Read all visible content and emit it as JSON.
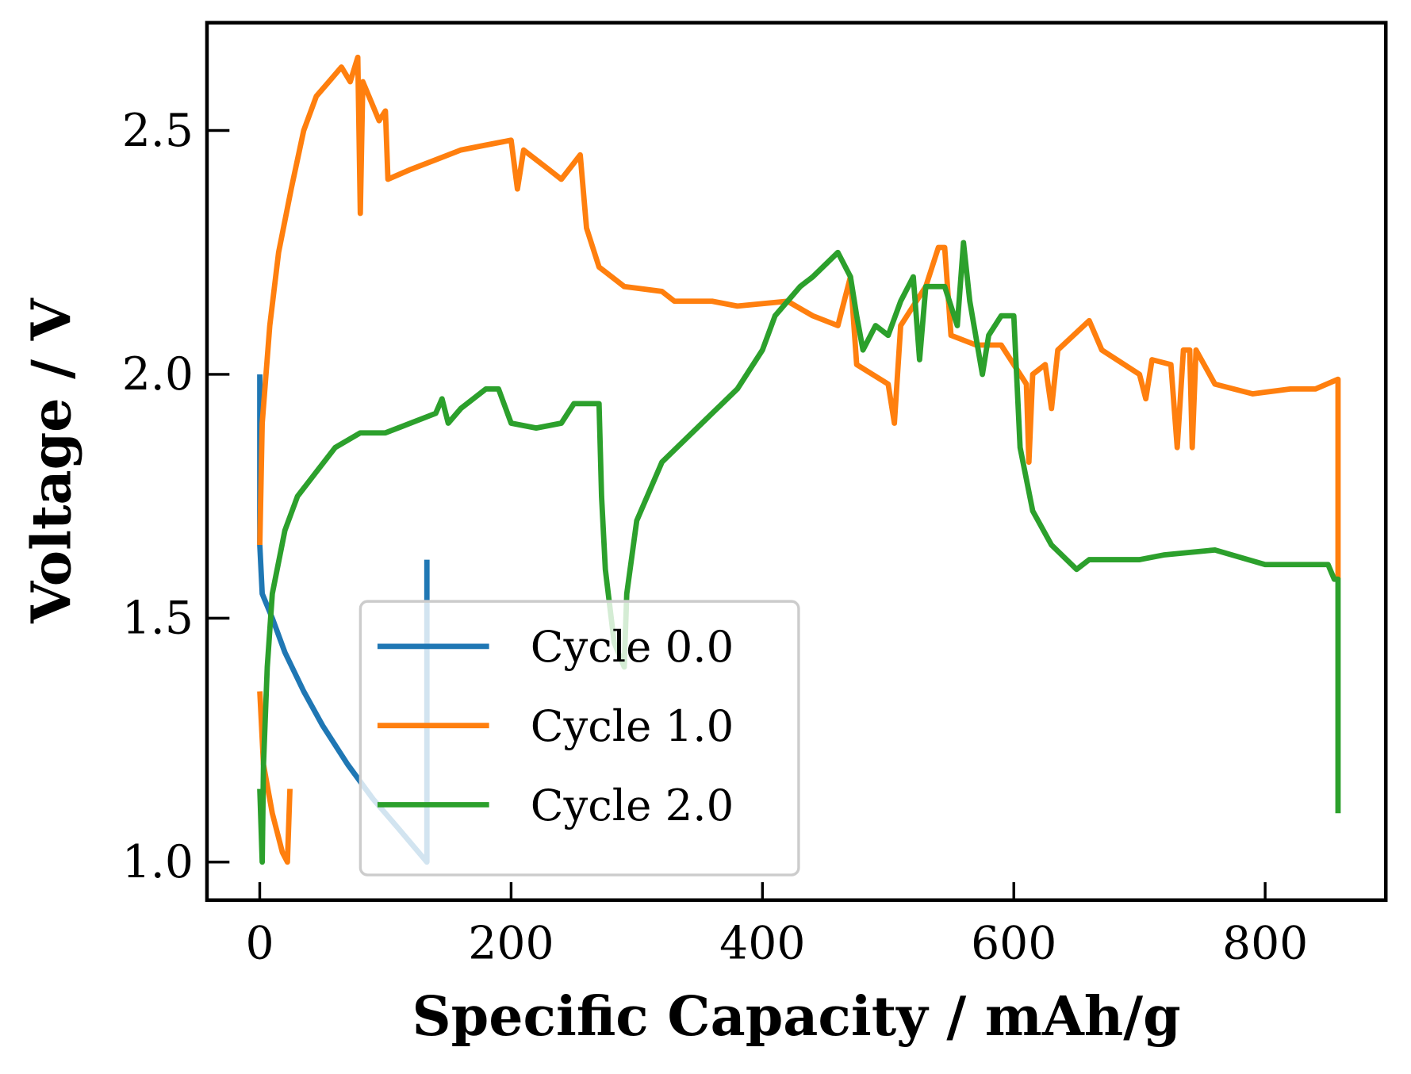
{
  "chart_data": {
    "type": "line",
    "x_label": "Specific Capacity / mAh/g",
    "y_label": "Voltage / V",
    "xlim": [
      -42,
      896
    ],
    "ylim": [
      0.922,
      2.721
    ],
    "xticks": [
      0,
      200,
      400,
      600,
      800
    ],
    "yticks": [
      {
        "value": 1.0,
        "label": "1.0"
      },
      1.5,
      {
        "value": 2.0,
        "label": "2.0"
      },
      2.5
    ],
    "legend": "lower center",
    "series": [
      {
        "name": "Cycle 0.0",
        "color": "#1f77b4",
        "x": [
          0,
          0,
          2,
          10,
          20,
          35,
          50,
          70,
          90,
          110,
          133,
          133
        ],
        "values": [
          2.0,
          1.65,
          1.55,
          1.5,
          1.43,
          1.35,
          1.28,
          1.2,
          1.13,
          1.07,
          1.0,
          1.62
        ]
      },
      {
        "name": "Cycle 1.0",
        "color": "#ff7f0e",
        "x": [
          0,
          3,
          10,
          18,
          22,
          24,
          null,
          0,
          2,
          8,
          15,
          25,
          35,
          45,
          55,
          65,
          72,
          78,
          80,
          82,
          95,
          100,
          102,
          120,
          140,
          160,
          180,
          200,
          205,
          210,
          230,
          240,
          255,
          260,
          270,
          290,
          320,
          330,
          360,
          380,
          420,
          440,
          460,
          470,
          475,
          500,
          505,
          510,
          530,
          540,
          545,
          550,
          570,
          590,
          600,
          610,
          612,
          615,
          625,
          630,
          635,
          660,
          670,
          700,
          705,
          710,
          725,
          730,
          735,
          740,
          742,
          745,
          760,
          790,
          820,
          840,
          858,
          858
        ],
        "values": [
          1.35,
          1.2,
          1.1,
          1.02,
          1.0,
          1.15,
          null,
          1.65,
          1.9,
          2.1,
          2.25,
          2.38,
          2.5,
          2.57,
          2.6,
          2.63,
          2.6,
          2.65,
          2.33,
          2.6,
          2.52,
          2.54,
          2.4,
          2.42,
          2.44,
          2.46,
          2.47,
          2.48,
          2.38,
          2.46,
          2.42,
          2.4,
          2.45,
          2.3,
          2.22,
          2.18,
          2.17,
          2.15,
          2.15,
          2.14,
          2.15,
          2.12,
          2.1,
          2.2,
          2.02,
          1.98,
          1.9,
          2.1,
          2.18,
          2.26,
          2.26,
          2.08,
          2.06,
          2.06,
          2.02,
          1.98,
          1.82,
          2.0,
          2.02,
          1.93,
          2.05,
          2.11,
          2.05,
          2.0,
          1.95,
          2.03,
          2.02,
          1.85,
          2.05,
          2.05,
          1.85,
          2.05,
          1.98,
          1.96,
          1.97,
          1.97,
          1.99,
          1.58
        ]
      },
      {
        "name": "Cycle 2.0",
        "color": "#2ca02c",
        "x": [
          0,
          2,
          3,
          6,
          10,
          20,
          30,
          45,
          60,
          80,
          100,
          120,
          140,
          145,
          150,
          160,
          180,
          190,
          200,
          220,
          240,
          250,
          270,
          272,
          275,
          282,
          290,
          292,
          300,
          320,
          340,
          360,
          380,
          400,
          410,
          420,
          430,
          440,
          460,
          470,
          475,
          480,
          490,
          500,
          510,
          520,
          525,
          530,
          545,
          555,
          560,
          565,
          575,
          580,
          590,
          600,
          605,
          615,
          630,
          650,
          660,
          700,
          720,
          760,
          800,
          850,
          855,
          858,
          858
        ],
        "values": [
          1.15,
          1.0,
          1.2,
          1.4,
          1.55,
          1.68,
          1.75,
          1.8,
          1.85,
          1.88,
          1.88,
          1.9,
          1.92,
          1.95,
          1.9,
          1.93,
          1.97,
          1.97,
          1.9,
          1.89,
          1.9,
          1.94,
          1.94,
          1.75,
          1.6,
          1.45,
          1.4,
          1.55,
          1.7,
          1.82,
          1.87,
          1.92,
          1.97,
          2.05,
          2.12,
          2.15,
          2.18,
          2.2,
          2.25,
          2.2,
          2.12,
          2.05,
          2.1,
          2.08,
          2.15,
          2.2,
          2.03,
          2.18,
          2.18,
          2.1,
          2.27,
          2.15,
          2.0,
          2.08,
          2.12,
          2.12,
          1.85,
          1.72,
          1.65,
          1.6,
          1.62,
          1.62,
          1.63,
          1.64,
          1.61,
          1.61,
          1.58,
          1.58,
          1.1
        ]
      }
    ]
  }
}
